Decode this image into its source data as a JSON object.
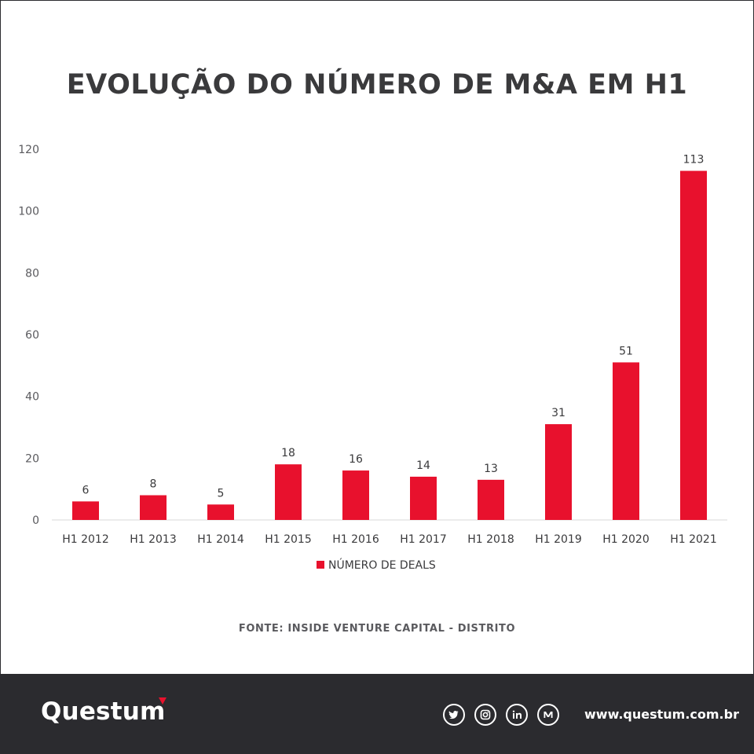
{
  "title": "EVOLUÇÃO DO NÚMERO DE M&A EM H1",
  "source": "FONTE: INSIDE VENTURE CAPITAL - DISTRITO",
  "chart_data": {
    "type": "bar",
    "title": "EVOLUÇÃO DO NÚMERO DE M&A EM H1",
    "categories": [
      "H1 2012",
      "H1 2013",
      "H1 2014",
      "H1 2015",
      "H1 2016",
      "H1 2017",
      "H1 2018",
      "H1 2019",
      "H1 2020",
      "H1 2021"
    ],
    "series": [
      {
        "name": "NÚMERO DE DEALS",
        "values": [
          6,
          8,
          5,
          18,
          16,
          14,
          13,
          31,
          51,
          113
        ],
        "color": "#e8112d"
      }
    ],
    "ylim": [
      0,
      120
    ],
    "yticks": [
      "0",
      "20",
      "40",
      "60",
      "80",
      "100",
      "120"
    ],
    "xlabel": "",
    "ylabel": "",
    "grid": false,
    "data_labels": true,
    "legend": "bottom"
  },
  "footer": {
    "brand": "Questum",
    "website": "www.questum.com.br",
    "accent_color": "#e8112d",
    "background_color": "#2b2b2f",
    "social_icons": [
      {
        "name": "twitter-icon",
        "glyph": "t"
      },
      {
        "name": "instagram-icon",
        "glyph": "◎"
      },
      {
        "name": "linkedin-icon",
        "glyph": "in"
      },
      {
        "name": "medium-icon",
        "glyph": "M"
      }
    ]
  }
}
